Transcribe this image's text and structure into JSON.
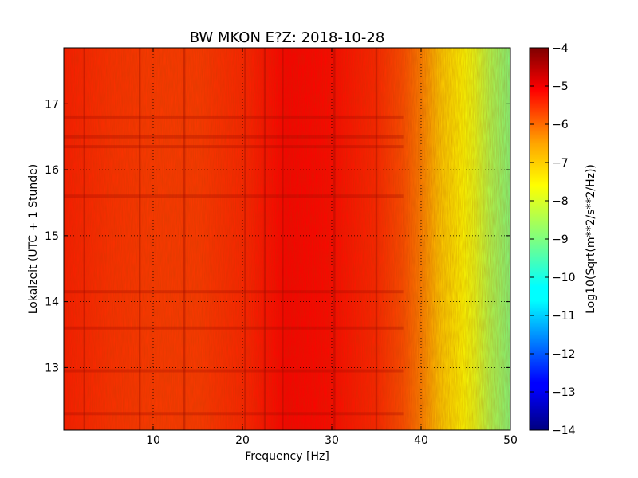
{
  "chart_data": {
    "type": "heatmap",
    "title": "BW MKON E?Z: 2018-10-28",
    "xlabel": "Frequency [Hz]",
    "ylabel": "Lokalzeit (UTC + 1 Stunde)",
    "xlim": [
      0,
      50
    ],
    "ylim": [
      17.85,
      12.05
    ],
    "x_ticks": [
      10,
      20,
      30,
      40,
      50
    ],
    "x_tick_labels": [
      "10",
      "20",
      "30",
      "40",
      "50"
    ],
    "y_ticks": [
      13,
      14,
      15,
      16,
      17
    ],
    "y_tick_labels": [
      "13",
      "14",
      "15",
      "16",
      "17"
    ],
    "grid": true,
    "colorbar": {
      "label": "Log10(Sqrt(m**2/s**2/Hz))",
      "range": [
        -14,
        -4
      ],
      "ticks": [
        -4,
        -5,
        -6,
        -7,
        -8,
        -9,
        -10,
        -11,
        -12,
        -13,
        -14
      ],
      "tick_labels": [
        "−4",
        "−5",
        "−6",
        "−7",
        "−8",
        "−9",
        "−10",
        "−11",
        "−12",
        "−13",
        "−14"
      ],
      "colormap": "jet"
    },
    "frequency_profile": {
      "frequency_hz": [
        0,
        5,
        10,
        15,
        20,
        25,
        30,
        35,
        38,
        40,
        42,
        44,
        46,
        48,
        50
      ],
      "log10_amplitude": [
        -5.5,
        -5.7,
        -5.8,
        -5.8,
        -5.6,
        -5.2,
        -5.3,
        -5.6,
        -6.0,
        -6.5,
        -7.2,
        -7.6,
        -8.0,
        -8.6,
        -9.0
      ]
    },
    "vertical_lines_hz": [
      2.3,
      8.5,
      13.5,
      20.3,
      22.5,
      24.5,
      30.3,
      35.0
    ],
    "horizontal_bands_time": [
      12.3,
      12.95,
      13.6,
      14.15,
      15.6,
      16.35,
      16.5,
      16.8
    ]
  }
}
